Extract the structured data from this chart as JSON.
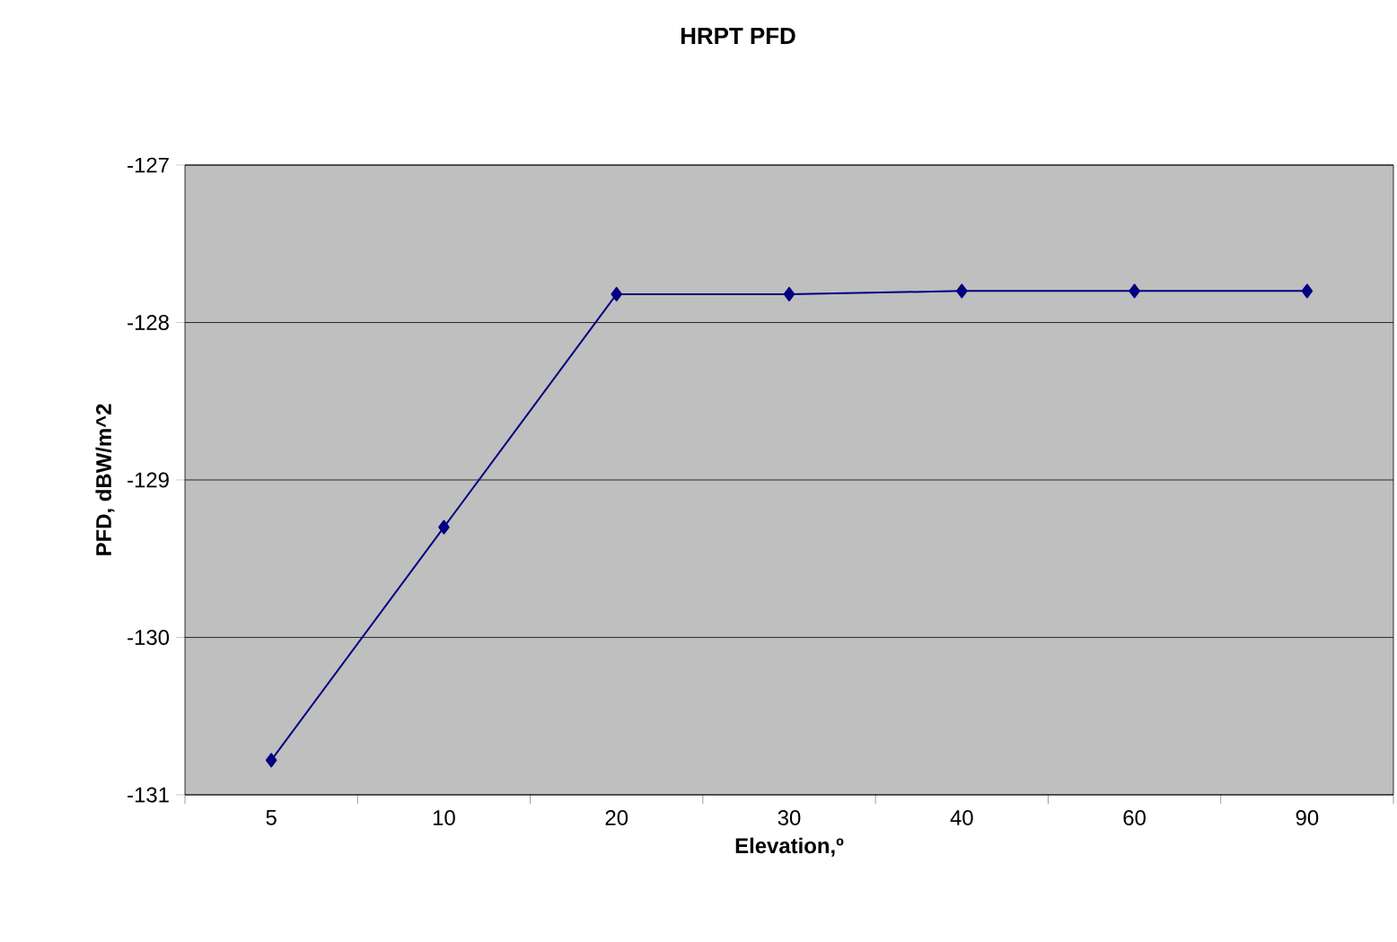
{
  "chart_data": {
    "type": "line",
    "title": "HRPT PFD",
    "xlabel": "Elevation,º",
    "ylabel": "PFD, dBW/m^2",
    "categories": [
      "5",
      "10",
      "20",
      "30",
      "40",
      "60",
      "90"
    ],
    "series": [
      {
        "color": "#000080",
        "values": [
          -130.78,
          -129.3,
          -127.82,
          -127.82,
          -127.8,
          -127.8,
          -127.8
        ]
      }
    ],
    "ylim": [
      -131,
      -127
    ],
    "yticks": [
      -131,
      -130,
      -129,
      -128,
      -127
    ],
    "grid": "y",
    "marker": "diamond",
    "line_style": "solid"
  }
}
